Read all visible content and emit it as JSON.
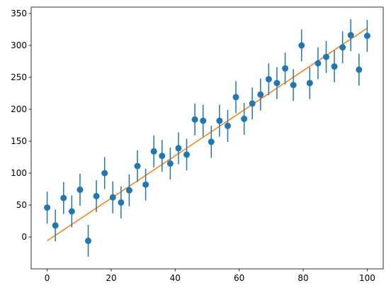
{
  "colors": {
    "points": "#1f77b4",
    "fit_line": "#ff7f0e",
    "axes": "#000000",
    "background": "#ffffff"
  },
  "chart_data": {
    "type": "scatter",
    "title": "",
    "xlabel": "",
    "ylabel": "",
    "grid": false,
    "xlim": [
      -5,
      105
    ],
    "ylim": [
      -50,
      360
    ],
    "x_ticks": [
      0,
      20,
      40,
      60,
      80,
      100
    ],
    "y_ticks": [
      0,
      50,
      100,
      150,
      200,
      250,
      300,
      350
    ],
    "error_bar": 25,
    "series": [
      {
        "kind": "errorbar",
        "x": [
          0,
          2.56,
          5.13,
          7.69,
          10.26,
          12.82,
          15.38,
          17.95,
          20.51,
          23.08,
          25.64,
          28.21,
          30.77,
          33.33,
          35.9,
          38.46,
          41.03,
          43.59,
          46.15,
          48.72,
          51.28,
          53.85,
          56.41,
          58.97,
          61.54,
          64.1,
          66.67,
          69.23,
          71.79,
          74.36,
          76.92,
          79.49,
          82.05,
          84.62,
          87.18,
          89.74,
          92.31,
          94.87,
          97.44,
          100
        ],
        "y": [
          46,
          18,
          61,
          40,
          74,
          -6,
          64,
          100,
          62,
          54,
          73,
          111,
          82,
          134,
          127,
          115,
          139,
          129,
          184,
          182,
          149,
          182,
          174,
          219,
          185,
          209,
          223,
          247,
          241,
          264,
          238,
          300,
          241,
          272,
          282,
          267,
          297,
          316,
          262,
          315
        ]
      },
      {
        "kind": "line",
        "x": [
          0,
          100
        ],
        "y": [
          -6,
          327
        ]
      }
    ]
  }
}
